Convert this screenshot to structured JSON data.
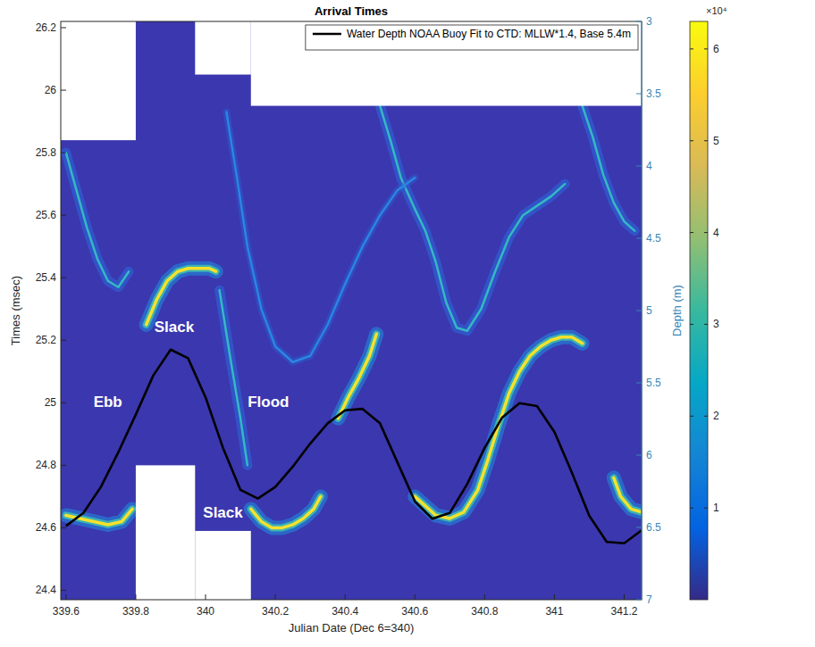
{
  "chart_data": {
    "type": "line",
    "title": "Arrival Times",
    "x_label": "Julian Date (Dec 6=340)",
    "y_label": "Times (msec)",
    "y2_label": "Depth (m)",
    "xlim": [
      339.585,
      341.25
    ],
    "xticks": [
      339.6,
      339.8,
      340,
      340.2,
      340.4,
      340.6,
      340.8,
      341,
      341.2
    ],
    "ylim": [
      24.37,
      26.22
    ],
    "yticks": [
      24.4,
      24.6,
      24.8,
      25,
      25.2,
      25.4,
      25.6,
      25.8,
      26,
      26.2
    ],
    "y2lim": [
      7,
      3
    ],
    "y2ticks": [
      3,
      3.5,
      4,
      4.5,
      5,
      5.5,
      6,
      6.5,
      7
    ],
    "grid": false,
    "legend": "upper right",
    "series": [
      {
        "color": "#f6e12c",
        "x": [
          339.6,
          339.64,
          339.68,
          339.72,
          339.76,
          339.79,
          339.8,
          339.83,
          339.86,
          339.89,
          339.92,
          339.95,
          339.98,
          340.01,
          340.03,
          340.05,
          340.13,
          340.16,
          340.19,
          340.22,
          340.25,
          340.28,
          340.31,
          340.33,
          340.35,
          340.38,
          340.41,
          340.44,
          340.47,
          340.49,
          340.52,
          340.6,
          340.63,
          340.66,
          340.7,
          340.74,
          340.78,
          340.81,
          340.84,
          340.87,
          340.9,
          340.93,
          340.96,
          340.99,
          341.02,
          341.05,
          341.08,
          341.12,
          341.17,
          341.19,
          341.22,
          341.25
        ],
        "values": [
          24.64,
          24.63,
          24.62,
          24.61,
          24.62,
          24.66,
          null,
          25.25,
          25.33,
          25.39,
          25.42,
          25.43,
          25.43,
          25.43,
          25.42,
          null,
          24.66,
          24.62,
          24.6,
          24.6,
          24.61,
          24.63,
          24.66,
          24.7,
          null,
          24.95,
          25.02,
          25.08,
          25.15,
          25.22,
          null,
          24.7,
          24.67,
          24.64,
          24.63,
          24.65,
          24.72,
          24.82,
          24.93,
          25.03,
          25.1,
          25.15,
          25.18,
          25.2,
          25.21,
          25.21,
          25.19,
          null,
          24.76,
          24.7,
          24.66,
          24.65
        ]
      },
      {
        "color": "#35b8c4",
        "x": [
          339.6,
          339.63,
          339.66,
          339.69,
          339.72,
          339.75,
          339.78,
          339.8,
          340.04,
          340.07,
          340.1,
          340.12,
          340.14,
          340.5,
          340.53,
          340.56,
          340.6,
          340.63,
          340.66,
          340.69,
          340.72,
          340.75,
          340.79,
          340.83,
          340.87,
          340.91,
          340.95,
          340.99,
          341.03,
          341.05,
          341.08,
          341.11,
          341.14,
          341.17,
          341.2,
          341.23
        ],
        "values": [
          25.8,
          25.68,
          25.56,
          25.46,
          25.39,
          25.37,
          25.42,
          null,
          25.36,
          25.15,
          24.95,
          24.8,
          null,
          25.95,
          25.84,
          25.72,
          25.62,
          25.55,
          25.45,
          25.32,
          25.24,
          25.23,
          25.3,
          25.42,
          25.53,
          25.6,
          25.63,
          25.66,
          25.7,
          null,
          25.95,
          25.85,
          25.73,
          25.64,
          25.58,
          25.55
        ]
      },
      {
        "color": "#2a86e0",
        "x": [
          340.06,
          340.09,
          340.12,
          340.16,
          340.2,
          340.25,
          340.3,
          340.35,
          340.4,
          340.45,
          340.5,
          340.55,
          340.6
        ],
        "values": [
          25.93,
          25.72,
          25.5,
          25.3,
          25.18,
          25.13,
          25.15,
          25.25,
          25.38,
          25.5,
          25.6,
          25.68,
          25.72
        ]
      },
      {
        "name": "Water Depth NOAA Buoy Fit to CTD: MLLW*1.4, Base 5.4m",
        "color": "#000000",
        "axis": "y2",
        "x": [
          339.6,
          339.65,
          339.7,
          339.75,
          339.8,
          339.85,
          339.9,
          339.95,
          340,
          340.05,
          340.1,
          340.15,
          340.2,
          340.25,
          340.3,
          340.35,
          340.4,
          340.45,
          340.5,
          340.55,
          340.6,
          340.65,
          340.7,
          340.75,
          340.8,
          340.85,
          340.9,
          340.95,
          341,
          341.05,
          341.1,
          341.15,
          341.2,
          341.25
        ],
        "values": [
          6.49,
          6.4,
          6.22,
          5.98,
          5.72,
          5.45,
          5.27,
          5.33,
          5.6,
          5.95,
          6.24,
          6.3,
          6.22,
          6.08,
          5.92,
          5.78,
          5.69,
          5.68,
          5.78,
          6.05,
          6.32,
          6.44,
          6.4,
          6.2,
          5.95,
          5.74,
          5.64,
          5.66,
          5.84,
          6.12,
          6.42,
          6.6,
          6.61,
          6.52
        ]
      }
    ],
    "no_data": [
      [
        339.585,
        339.8,
        25.84,
        26.22
      ],
      [
        339.97,
        340.13,
        26.05,
        26.22
      ],
      [
        340.13,
        341.25,
        25.95,
        26.22
      ],
      [
        339.8,
        339.97,
        24.37,
        24.8
      ],
      [
        339.97,
        340.13,
        24.37,
        24.59
      ]
    ],
    "annotations": [
      {
        "text": "Slack",
        "x": 339.91,
        "y": 25.24
      },
      {
        "text": "Ebb",
        "x": 339.72,
        "y": 25.0
      },
      {
        "text": "Flood",
        "x": 340.18,
        "y": 25.0
      },
      {
        "text": "Slack",
        "x": 340.05,
        "y": 24.645
      }
    ],
    "colorbar": {
      "range": [
        0,
        63000
      ],
      "ticks": [
        {
          "value": 10000,
          "label": "1"
        },
        {
          "value": 20000,
          "label": "2"
        },
        {
          "value": 30000,
          "label": "3"
        },
        {
          "value": 40000,
          "label": "4"
        },
        {
          "value": 50000,
          "label": "5"
        },
        {
          "value": 60000,
          "label": "6"
        }
      ],
      "label": "×10⁴"
    }
  }
}
